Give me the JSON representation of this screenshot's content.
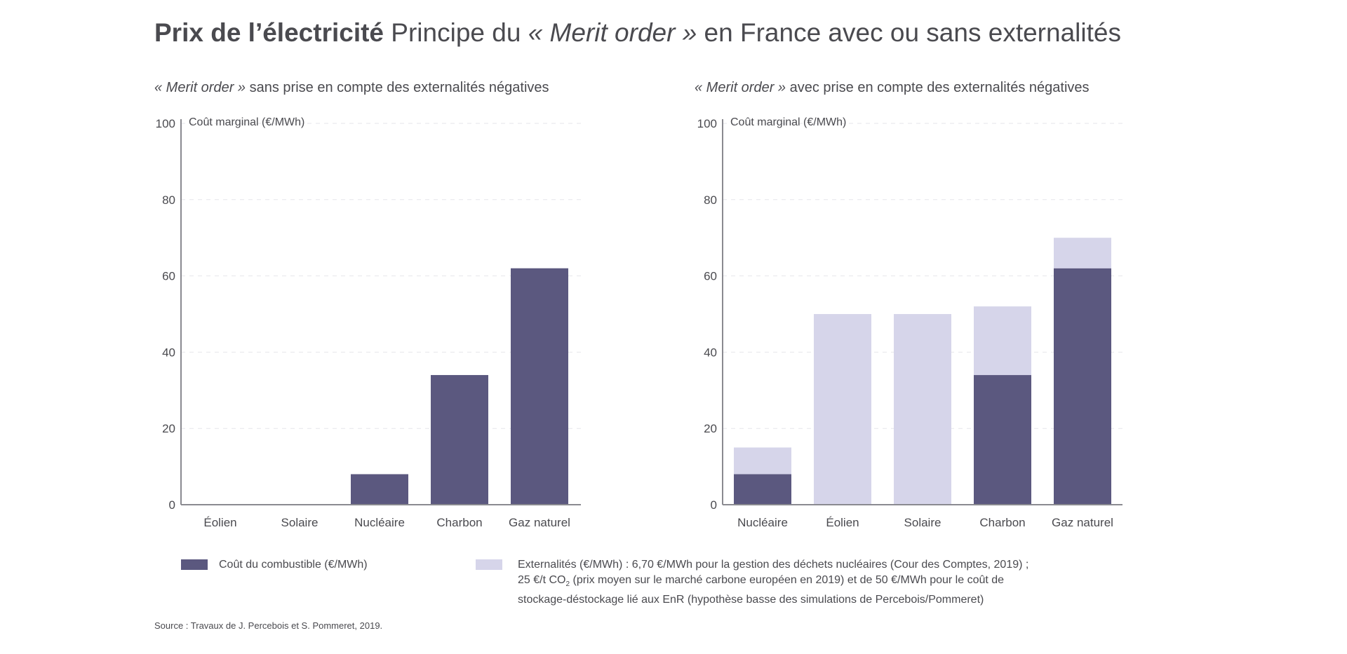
{
  "title": {
    "bold": "Prix de l’électricité",
    "rest_prefix": "Principe du ",
    "rest_italic": "« Merit order »",
    "rest_suffix": " en France avec ou sans externalités"
  },
  "colors": {
    "fuel": "#5b587f",
    "externality": "#d6d5ea",
    "axis": "#8a8a90",
    "grid": "#e6e6ea",
    "text": "#4a4a4f"
  },
  "chart_data": [
    {
      "type": "bar",
      "subtitle_italic": "« Merit order »",
      "subtitle_rest": " sans prise en compte des externalités négatives",
      "ylabel": "Coût marginal (€/MWh)",
      "ylim": [
        0,
        100
      ],
      "yticks": [
        0,
        20,
        40,
        60,
        80,
        100
      ],
      "grid": true,
      "categories": [
        "Éolien",
        "Solaire",
        "Nucléaire",
        "Charbon",
        "Gaz naturel"
      ],
      "series": [
        {
          "name": "Coût du combustible (€/MWh)",
          "values": [
            0,
            0,
            8,
            34,
            62
          ]
        }
      ]
    },
    {
      "type": "bar",
      "stacked": true,
      "subtitle_italic": "« Merit order »",
      "subtitle_rest": " avec prise en compte des externalités négatives",
      "ylabel": "Coût marginal (€/MWh)",
      "ylim": [
        0,
        100
      ],
      "yticks": [
        0,
        20,
        40,
        60,
        80,
        100
      ],
      "grid": true,
      "categories": [
        "Nucléaire",
        "Éolien",
        "Solaire",
        "Charbon",
        "Gaz naturel"
      ],
      "series": [
        {
          "name": "Coût du combustible (€/MWh)",
          "values": [
            8,
            0,
            0,
            34,
            62
          ]
        },
        {
          "name": "Externalités (€/MWh)",
          "values": [
            7,
            50,
            50,
            18,
            8
          ]
        }
      ]
    }
  ],
  "legend": {
    "fuel_label": "Coût du combustible (€/MWh)",
    "ext_line1": "Externalités (€/MWh) : 6,70 €/MWh pour la gestion des déchets nucléaires (Cour des Comptes, 2019) ;",
    "ext_line2_a": "25 €/t CO",
    "ext_line2_sub": "2",
    "ext_line2_b": " (prix moyen sur le marché carbone européen en 2019) et de 50 €/MWh pour le coût de",
    "ext_line3": "stockage-déstockage lié aux EnR (hypothèse basse des simulations de Percebois/Pommeret)"
  },
  "source": "Source : Travaux de J. Percebois et S. Pommeret, 2019."
}
